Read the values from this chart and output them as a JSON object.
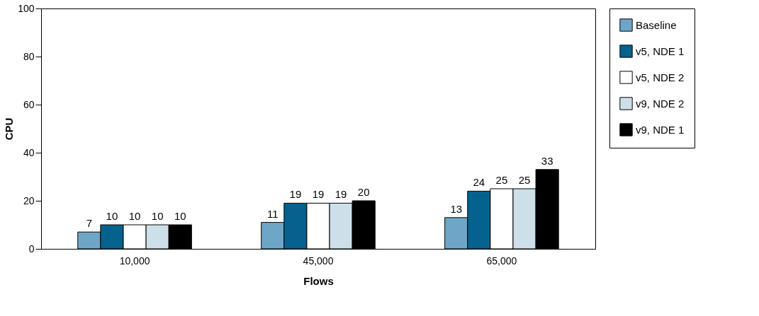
{
  "chart_data": {
    "type": "bar",
    "xlabel": "Flows",
    "ylabel": "CPU",
    "categories": [
      "10,000",
      "45,000",
      "65,000"
    ],
    "series": [
      {
        "name": "Baseline",
        "color": "#6ea6c8",
        "values": [
          7,
          11,
          13
        ]
      },
      {
        "name": "v5, NDE 1",
        "color": "#05628f",
        "values": [
          10,
          19,
          24
        ]
      },
      {
        "name": "v5, NDE 2",
        "color": "#ffffff",
        "values": [
          10,
          19,
          25
        ]
      },
      {
        "name": "v9, NDE 2",
        "color": "#cde0ea",
        "values": [
          10,
          19,
          25
        ]
      },
      {
        "name": "v9, NDE 1",
        "color": "#000000",
        "values": [
          10,
          20,
          33
        ]
      }
    ],
    "ylim": [
      0,
      100
    ],
    "yticks": [
      0,
      20,
      40,
      60,
      80,
      100
    ],
    "data_labels": true,
    "legend": "right",
    "grid": false
  }
}
